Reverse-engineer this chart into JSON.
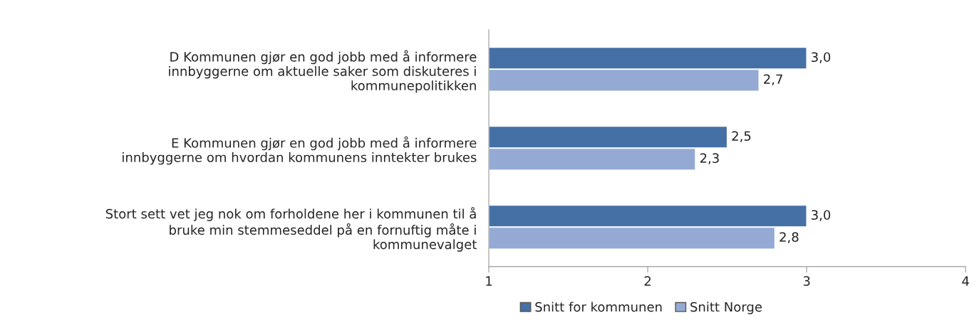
{
  "chart_data": {
    "type": "bar",
    "orientation": "horizontal",
    "categories": [
      "D Kommunen gjør en god jobb med å informere\ninnbyggerne om aktuelle saker som diskuteres i\nkommunepolitikken",
      "E Kommunen gjør en god jobb med å informere\ninnbyggerne om hvordan kommunens inntekter brukes",
      "Stort sett vet jeg nok om forholdene her i kommunen til å\nbruke min stemmeseddel på en fornuftig måte i\nkommunevalget"
    ],
    "series": [
      {
        "name": "Snitt for kommunen",
        "color": "#4570a6",
        "values": [
          3.0,
          2.5,
          3.0
        ],
        "value_labels": [
          "3,0",
          "2,5",
          "3,0"
        ]
      },
      {
        "name": "Snitt Norge",
        "color": "#94aad4",
        "values": [
          2.7,
          2.3,
          2.8
        ],
        "value_labels": [
          "2,7",
          "2,3",
          "2,8"
        ]
      }
    ],
    "xlim": [
      1,
      4
    ],
    "xticks": [
      1,
      2,
      3,
      4
    ],
    "grid": false,
    "legend": "bottom"
  }
}
